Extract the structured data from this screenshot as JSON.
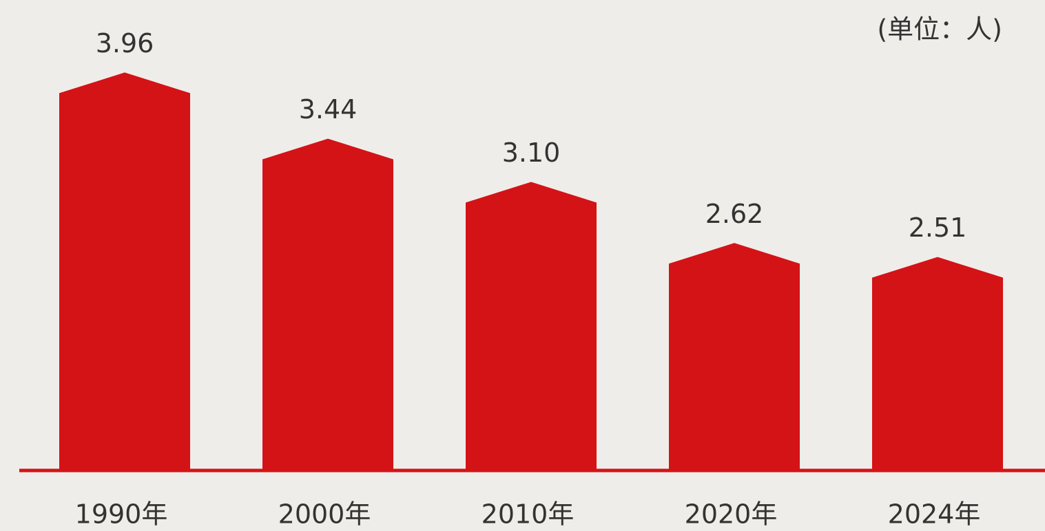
{
  "chart_data": {
    "type": "bar",
    "unit_note": "(单位：人)",
    "categories": [
      "1990年",
      "2000年",
      "2010年",
      "2020年",
      "2024年"
    ],
    "values": [
      3.96,
      3.44,
      3.1,
      2.62,
      2.51
    ],
    "value_labels": [
      "3.96",
      "3.44",
      "3.10",
      "2.62",
      "2.51"
    ],
    "color": "#d41317",
    "ylim": [
      1,
      4.2
    ]
  }
}
